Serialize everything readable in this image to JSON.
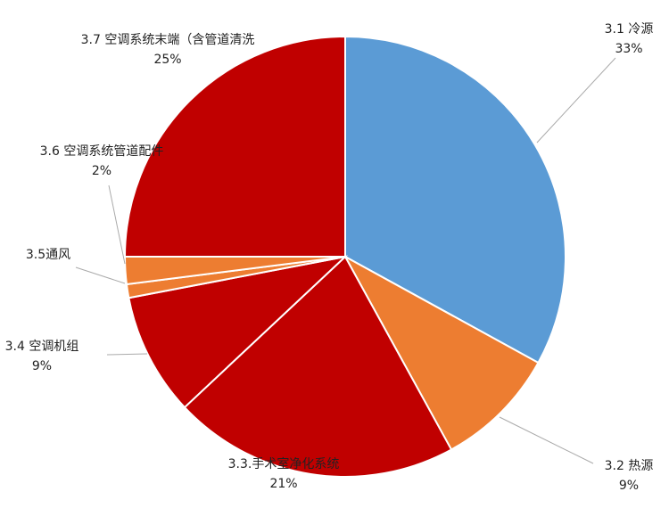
{
  "chart_data": {
    "type": "pie",
    "categories": [
      "3.1 冷源",
      "3.2 热源",
      "3.3.手术室净化系统",
      "3.4 空调机组",
      "3.5通风",
      "3.6 空调系统管道配件",
      "3.7 空调系统末端（含管道清洗"
    ],
    "values": [
      33,
      9,
      21,
      9,
      1,
      2,
      25
    ],
    "value_labels": [
      "33%",
      "9%",
      "21%",
      "9%",
      null,
      "2%",
      "25%"
    ],
    "colors": [
      "#5b9bd5",
      "#ed7d31",
      "#c00000",
      "#c00000",
      "#ed7d31",
      "#ed7d31",
      "#c00000"
    ]
  }
}
